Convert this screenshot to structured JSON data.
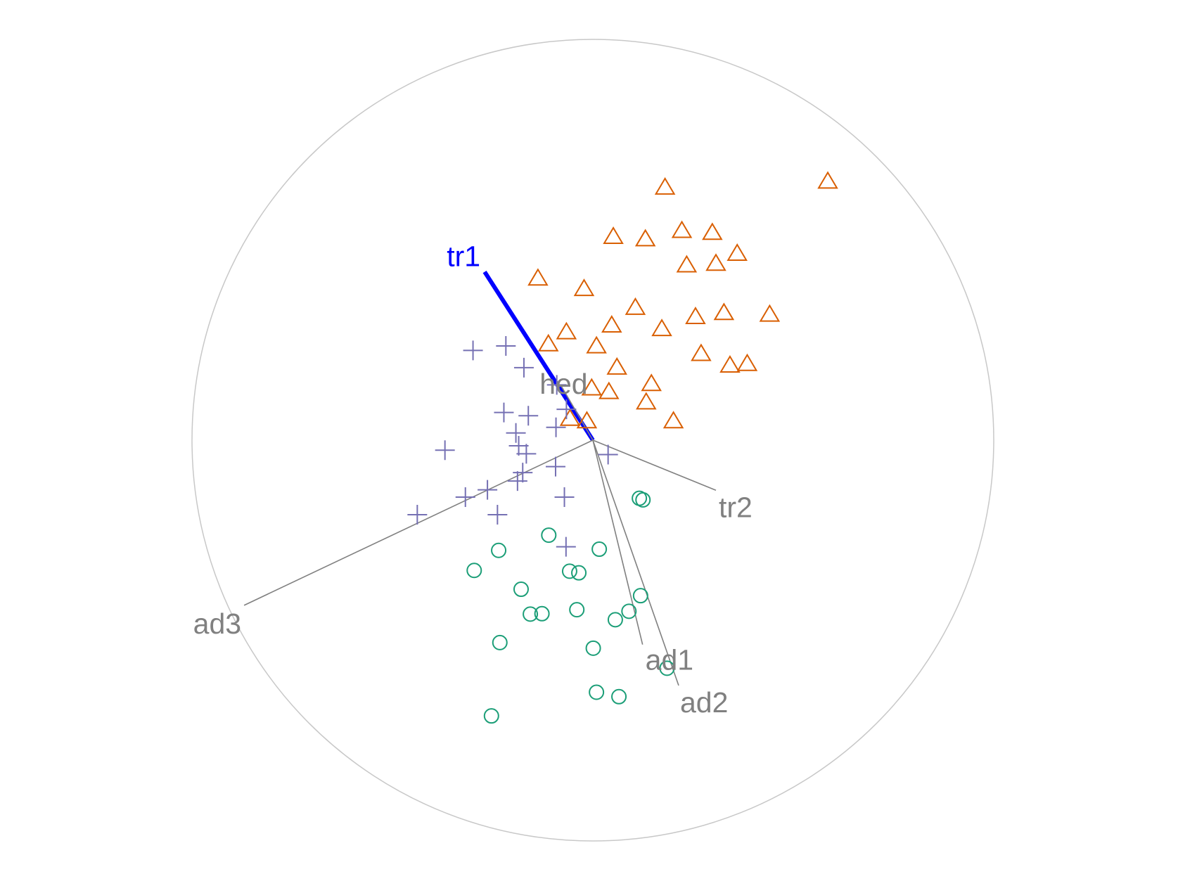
{
  "chart_data": {
    "type": "scatter",
    "title": "",
    "xlabel": "",
    "ylabel": "",
    "grid": false,
    "legend": "none",
    "xlim": [
      -1,
      1
    ],
    "ylim": [
      -1,
      1
    ],
    "boundary": "unit-circle",
    "colors": {
      "circle": "#c8c8c8",
      "axis": "#808080",
      "highlight": "#0000ff",
      "triangle": "#d95f02",
      "plus": "#7570b3",
      "circle_marker": "#1b9e77"
    },
    "axes_vectors": [
      {
        "label": "tr1",
        "x": -0.27,
        "y": 0.42,
        "highlight": true
      },
      {
        "label": "hed",
        "x": -0.08,
        "y": 0.137,
        "highlight": false
      },
      {
        "label": "tr2",
        "x": 0.307,
        "y": -0.125,
        "highlight": false
      },
      {
        "label": "ad1",
        "x": 0.124,
        "y": -0.51,
        "highlight": false
      },
      {
        "label": "ad2",
        "x": 0.214,
        "y": -0.612,
        "highlight": false
      },
      {
        "label": "ad3",
        "x": -0.87,
        "y": -0.412,
        "highlight": false
      }
    ],
    "series": [
      {
        "marker": "triangle",
        "points": [
          [
            0.18,
            0.63
          ],
          [
            0.586,
            0.645
          ],
          [
            0.051,
            0.507
          ],
          [
            0.131,
            0.501
          ],
          [
            0.222,
            0.522
          ],
          [
            0.298,
            0.517
          ],
          [
            0.36,
            0.465
          ],
          [
            0.234,
            0.436
          ],
          [
            0.307,
            0.44
          ],
          [
            -0.137,
            0.403
          ],
          [
            -0.022,
            0.377
          ],
          [
            0.106,
            0.33
          ],
          [
            0.327,
            0.317
          ],
          [
            0.441,
            0.313
          ],
          [
            0.047,
            0.286
          ],
          [
            0.172,
            0.277
          ],
          [
            0.256,
            0.307
          ],
          [
            -0.066,
            0.269
          ],
          [
            -0.111,
            0.239
          ],
          [
            0.009,
            0.234
          ],
          [
            0.27,
            0.215
          ],
          [
            0.06,
            0.181
          ],
          [
            0.342,
            0.186
          ],
          [
            0.385,
            0.19
          ],
          [
            -0.003,
            0.129
          ],
          [
            0.04,
            0.12
          ],
          [
            0.146,
            0.14
          ],
          [
            0.133,
            0.094
          ],
          [
            -0.057,
            0.053
          ],
          [
            -0.015,
            0.047
          ],
          [
            0.201,
            0.047
          ]
        ]
      },
      {
        "marker": "plus",
        "points": [
          [
            -0.299,
            0.224
          ],
          [
            -0.217,
            0.235
          ],
          [
            -0.172,
            0.181
          ],
          [
            -0.09,
            0.138
          ],
          [
            -0.222,
            0.069
          ],
          [
            -0.161,
            0.061
          ],
          [
            -0.066,
            0.077
          ],
          [
            -0.192,
            0.018
          ],
          [
            -0.092,
            0.032
          ],
          [
            -0.369,
            -0.025
          ],
          [
            -0.185,
            -0.014
          ],
          [
            -0.166,
            -0.034
          ],
          [
            0.038,
            -0.036
          ],
          [
            -0.093,
            -0.066
          ],
          [
            -0.175,
            -0.081
          ],
          [
            -0.188,
            -0.102
          ],
          [
            -0.263,
            -0.124
          ],
          [
            -0.318,
            -0.142
          ],
          [
            -0.071,
            -0.142
          ],
          [
            -0.438,
            -0.186
          ],
          [
            -0.238,
            -0.186
          ],
          [
            -0.067,
            -0.266
          ]
        ]
      },
      {
        "marker": "circle",
        "points": [
          [
            0.116,
            -0.145
          ],
          [
            0.125,
            -0.149
          ],
          [
            -0.11,
            -0.237
          ],
          [
            -0.235,
            -0.275
          ],
          [
            0.016,
            -0.272
          ],
          [
            -0.296,
            -0.325
          ],
          [
            -0.058,
            -0.327
          ],
          [
            -0.035,
            -0.331
          ],
          [
            -0.179,
            -0.372
          ],
          [
            0.119,
            -0.388
          ],
          [
            -0.156,
            -0.434
          ],
          [
            -0.127,
            -0.433
          ],
          [
            -0.04,
            -0.423
          ],
          [
            0.09,
            -0.427
          ],
          [
            0.056,
            -0.448
          ],
          [
            -0.232,
            -0.505
          ],
          [
            0.001,
            -0.519
          ],
          [
            0.185,
            -0.569
          ],
          [
            0.009,
            -0.629
          ],
          [
            0.065,
            -0.64
          ],
          [
            -0.253,
            -0.688
          ]
        ]
      }
    ]
  }
}
